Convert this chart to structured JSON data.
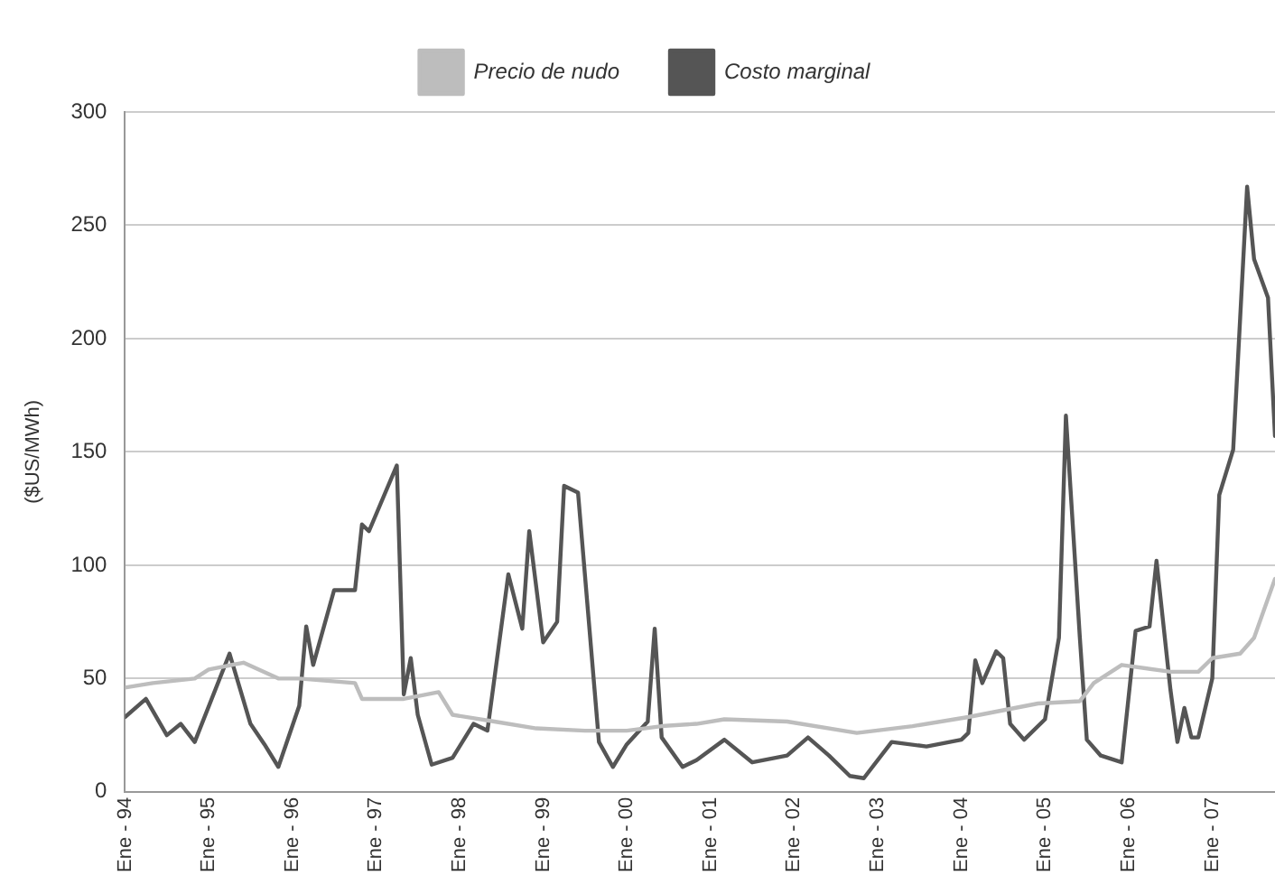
{
  "chart_data": {
    "type": "line",
    "ylabel": "($US/MWh)",
    "ylim": [
      0,
      300
    ],
    "yticks": [
      0,
      50,
      100,
      150,
      200,
      250,
      300
    ],
    "xlim": [
      "1994-01",
      "2007-10"
    ],
    "xticks": [
      {
        "value": "1994-01",
        "label": "Ene - 94"
      },
      {
        "value": "1995-01",
        "label": "Ene - 95"
      },
      {
        "value": "1996-01",
        "label": "Ene - 96"
      },
      {
        "value": "1997-01",
        "label": "Ene - 97"
      },
      {
        "value": "1998-01",
        "label": "Ene - 98"
      },
      {
        "value": "1999-01",
        "label": "Ene - 99"
      },
      {
        "value": "2000-01",
        "label": "Ene - 00"
      },
      {
        "value": "2001-01",
        "label": "Ene - 01"
      },
      {
        "value": "2002-01",
        "label": "Ene - 02"
      },
      {
        "value": "2003-01",
        "label": "Ene - 03"
      },
      {
        "value": "2004-01",
        "label": "Ene - 04"
      },
      {
        "value": "2005-01",
        "label": "Ene - 05"
      },
      {
        "value": "2006-01",
        "label": "Ene - 06"
      },
      {
        "value": "2007-01",
        "label": "Ene - 07"
      }
    ],
    "grid": "y",
    "legend": "top",
    "marker": "none",
    "line_style": "solid",
    "series": [
      {
        "name": "Precio de nudo",
        "color": "#bdbdbd",
        "x": [
          "1994-01",
          "1994-05",
          "1994-11",
          "1995-01",
          "1995-06",
          "1995-11",
          "1996-02",
          "1996-10",
          "1996-11",
          "1997-05",
          "1997-10",
          "1997-12",
          "1998-06",
          "1998-12",
          "1999-07",
          "2000-01",
          "2000-06",
          "2000-11",
          "2001-03",
          "2001-12",
          "2002-10",
          "2003-06",
          "2004-02",
          "2004-07",
          "2004-12",
          "2005-06",
          "2005-08",
          "2005-12",
          "2006-07",
          "2006-11",
          "2007-01",
          "2007-05",
          "2007-07",
          "2007-10"
        ],
        "values": [
          46,
          48,
          50,
          54,
          57,
          50,
          50,
          48,
          41,
          41,
          44,
          34,
          31,
          28,
          27,
          27,
          29,
          30,
          32,
          31,
          26,
          29,
          33,
          36,
          39,
          40,
          48,
          56,
          53,
          53,
          59,
          61,
          68,
          94
        ]
      },
      {
        "name": "Costo marginal",
        "color": "#555555",
        "x": [
          "1994-01",
          "1994-04",
          "1994-07",
          "1994-09",
          "1994-11",
          "1995-04",
          "1995-07",
          "1995-09",
          "1995-11",
          "1996-02",
          "1996-03",
          "1996-04",
          "1996-07",
          "1996-10",
          "1996-11",
          "1996-12",
          "1997-04",
          "1997-05",
          "1997-06",
          "1997-07",
          "1997-09",
          "1997-12",
          "1998-03",
          "1998-05",
          "1998-08",
          "1998-10",
          "1998-11",
          "1999-01",
          "1999-03",
          "1999-04",
          "1999-06",
          "1999-09",
          "1999-11",
          "2000-01",
          "2000-04",
          "2000-05",
          "2000-06",
          "2000-09",
          "2000-11",
          "2001-03",
          "2001-07",
          "2001-12",
          "2002-03",
          "2002-06",
          "2002-09",
          "2002-11",
          "2003-03",
          "2003-08",
          "2004-01",
          "2004-02",
          "2004-03",
          "2004-04",
          "2004-06",
          "2004-07",
          "2004-08",
          "2004-10",
          "2005-01",
          "2005-03",
          "2005-04",
          "2005-06",
          "2005-07",
          "2005-09",
          "2005-12",
          "2006-02",
          "2006-04",
          "2006-05",
          "2006-07",
          "2006-08",
          "2006-09",
          "2006-10",
          "2006-11",
          "2007-01",
          "2007-02",
          "2007-04",
          "2007-05",
          "2007-06",
          "2007-07",
          "2007-09",
          "2007-10"
        ],
        "values": [
          33,
          41,
          25,
          30,
          22,
          61,
          30,
          21,
          11,
          38,
          73,
          56,
          89,
          89,
          118,
          115,
          144,
          43,
          59,
          34,
          12,
          15,
          30,
          27,
          96,
          72,
          115,
          66,
          75,
          135,
          132,
          22,
          11,
          21,
          31,
          72,
          24,
          11,
          14,
          23,
          13,
          16,
          24,
          16,
          7,
          6,
          22,
          20,
          23,
          26,
          58,
          48,
          62,
          59,
          30,
          23,
          32,
          68,
          166,
          68,
          23,
          16,
          13,
          71,
          73,
          102,
          45,
          22,
          37,
          24,
          24,
          50,
          131,
          151,
          209,
          267,
          235,
          218,
          157
        ]
      }
    ]
  }
}
